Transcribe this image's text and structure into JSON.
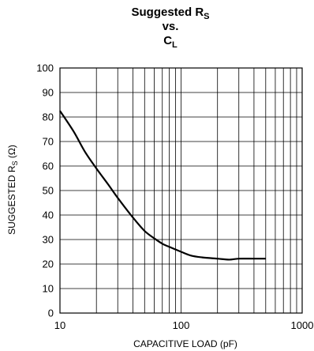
{
  "chart_data": {
    "type": "line",
    "title": {
      "line1_main": "Suggested R",
      "line1_sub": "S",
      "line2": "vs.",
      "line3_main": "C",
      "line3_sub": "L"
    },
    "xlabel": "CAPACITIVE LOAD (pF)",
    "ylabel": {
      "main": "SUGGESTED R",
      "sub": "S",
      "unit": " (Ω)"
    },
    "x_scale": "log",
    "xlim": [
      10,
      1000
    ],
    "ylim": [
      0,
      100
    ],
    "x_ticks": [
      10,
      100,
      1000
    ],
    "x_tick_labels": [
      "10",
      "100",
      "1000"
    ],
    "y_ticks": [
      0,
      10,
      20,
      30,
      40,
      50,
      60,
      70,
      80,
      90,
      100
    ],
    "y_tick_labels": [
      "0",
      "10",
      "20",
      "30",
      "40",
      "50",
      "60",
      "70",
      "80",
      "90",
      "100"
    ],
    "grid": true,
    "series": [
      {
        "x": [
          10,
          13,
          16,
          20,
          25,
          30,
          40,
          50,
          60,
          70,
          80,
          100,
          120,
          150,
          200,
          250,
          300,
          400,
          500
        ],
        "y": [
          82.5,
          74,
          66,
          59,
          52.5,
          47,
          39,
          33.5,
          30.5,
          28.3,
          27,
          25,
          23.5,
          22.7,
          22.2,
          21.8,
          22.2,
          22.2,
          22.2
        ],
        "color": "#000000"
      }
    ]
  }
}
